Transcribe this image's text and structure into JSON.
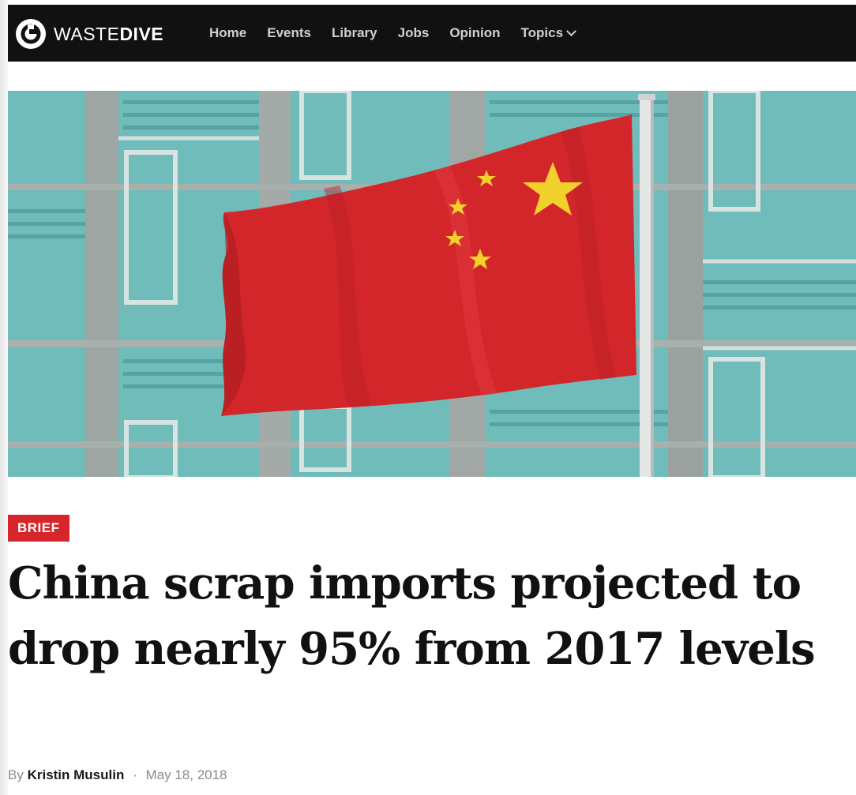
{
  "header": {
    "logo_light": "WASTE",
    "logo_bold": "DIVE",
    "nav": [
      "Home",
      "Events",
      "Library",
      "Jobs",
      "Opinion",
      "Topics"
    ]
  },
  "article": {
    "badge": "BRIEF",
    "headline": "China scrap imports projected to drop nearly 95% from 2017 levels",
    "byline_prefix": "By",
    "author": "Kristin Musulin",
    "separator": "·",
    "date": "May 18, 2018"
  },
  "colors": {
    "nav_bg": "#111111",
    "badge_bg": "#d7262b",
    "flag_red": "#d3262a",
    "flag_star": "#f3d12c"
  },
  "icons": {
    "logo": "waste-dive-logo-icon",
    "topics_dropdown": "chevron-down-icon"
  }
}
